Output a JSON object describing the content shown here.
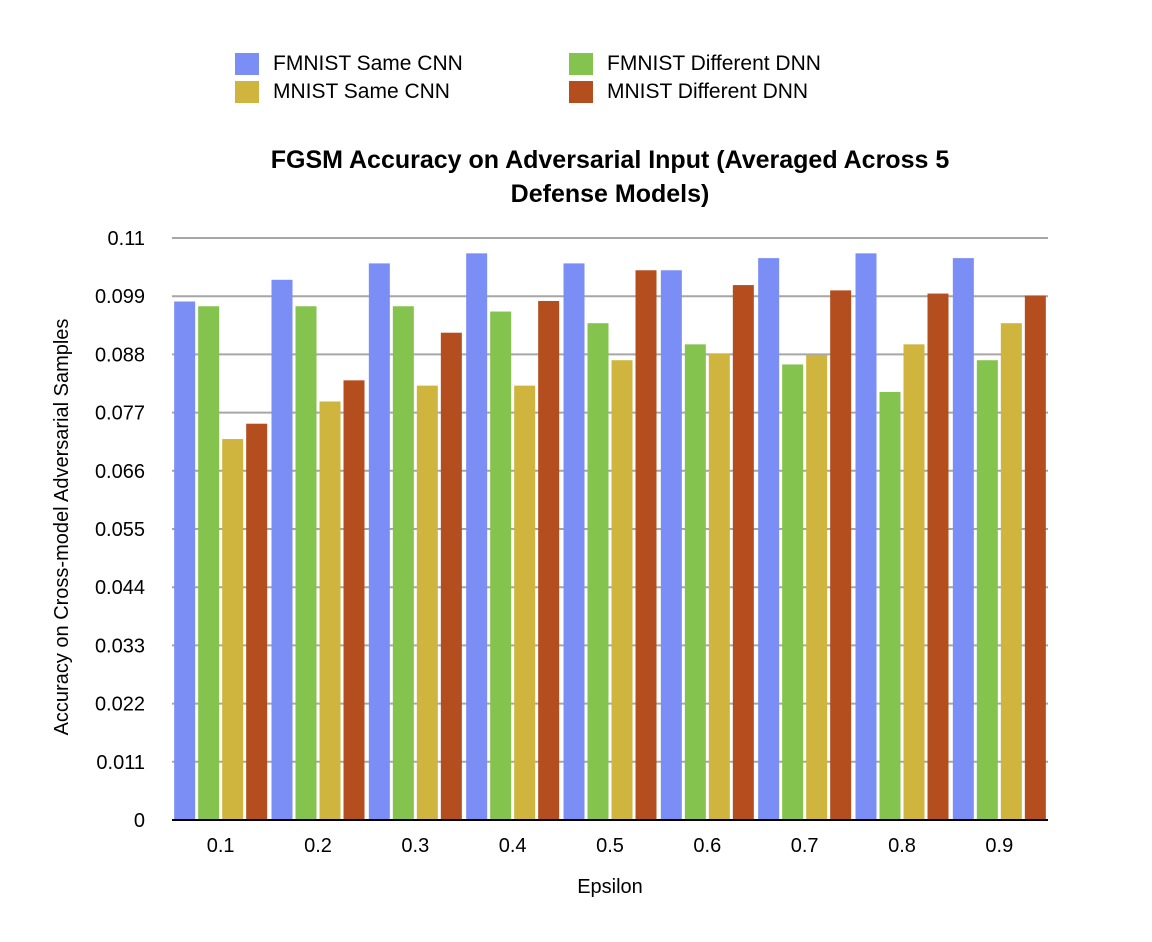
{
  "chart_data": {
    "type": "bar",
    "title": "FGSM Accuracy on Adversarial Input (Averaged Across 5 Defense Models)",
    "title_lines": [
      "FGSM Accuracy on Adversarial Input (Averaged Across 5",
      "Defense Models)"
    ],
    "xlabel": "Epsilon",
    "ylabel": "Accuracy on Cross-model Adversarial Samples",
    "categories": [
      "0.1",
      "0.2",
      "0.3",
      "0.4",
      "0.5",
      "0.6",
      "0.7",
      "0.8",
      "0.9"
    ],
    "ylim": [
      0,
      0.11
    ],
    "yticks": [
      "0",
      "0.011",
      "0.022",
      "0.033",
      "0.044",
      "0.055",
      "0.066",
      "0.077",
      "0.088",
      "0.099",
      "0.11"
    ],
    "grid": true,
    "legend_position": "top",
    "series": [
      {
        "name": "FMNIST Same CNN",
        "color": "#7b8ef5",
        "values": [
          0.098,
          0.1021,
          0.1052,
          0.1071,
          0.1052,
          0.1039,
          0.1062,
          0.1071,
          0.1062
        ]
      },
      {
        "name": "FMNIST Different DNN",
        "color": "#83c34e",
        "values": [
          0.0971,
          0.0971,
          0.0971,
          0.0961,
          0.0939,
          0.0899,
          0.0861,
          0.0809,
          0.0869
        ]
      },
      {
        "name": "MNIST Same CNN",
        "color": "#cfb43e",
        "values": [
          0.072,
          0.0791,
          0.0821,
          0.0821,
          0.0869,
          0.0881,
          0.0879,
          0.0899,
          0.0939
        ]
      },
      {
        "name": "MNIST Different DNN",
        "color": "#b44e1e",
        "values": [
          0.0749,
          0.0831,
          0.0921,
          0.0981,
          0.1039,
          0.1011,
          0.1001,
          0.0995,
          0.0991
        ]
      }
    ]
  }
}
